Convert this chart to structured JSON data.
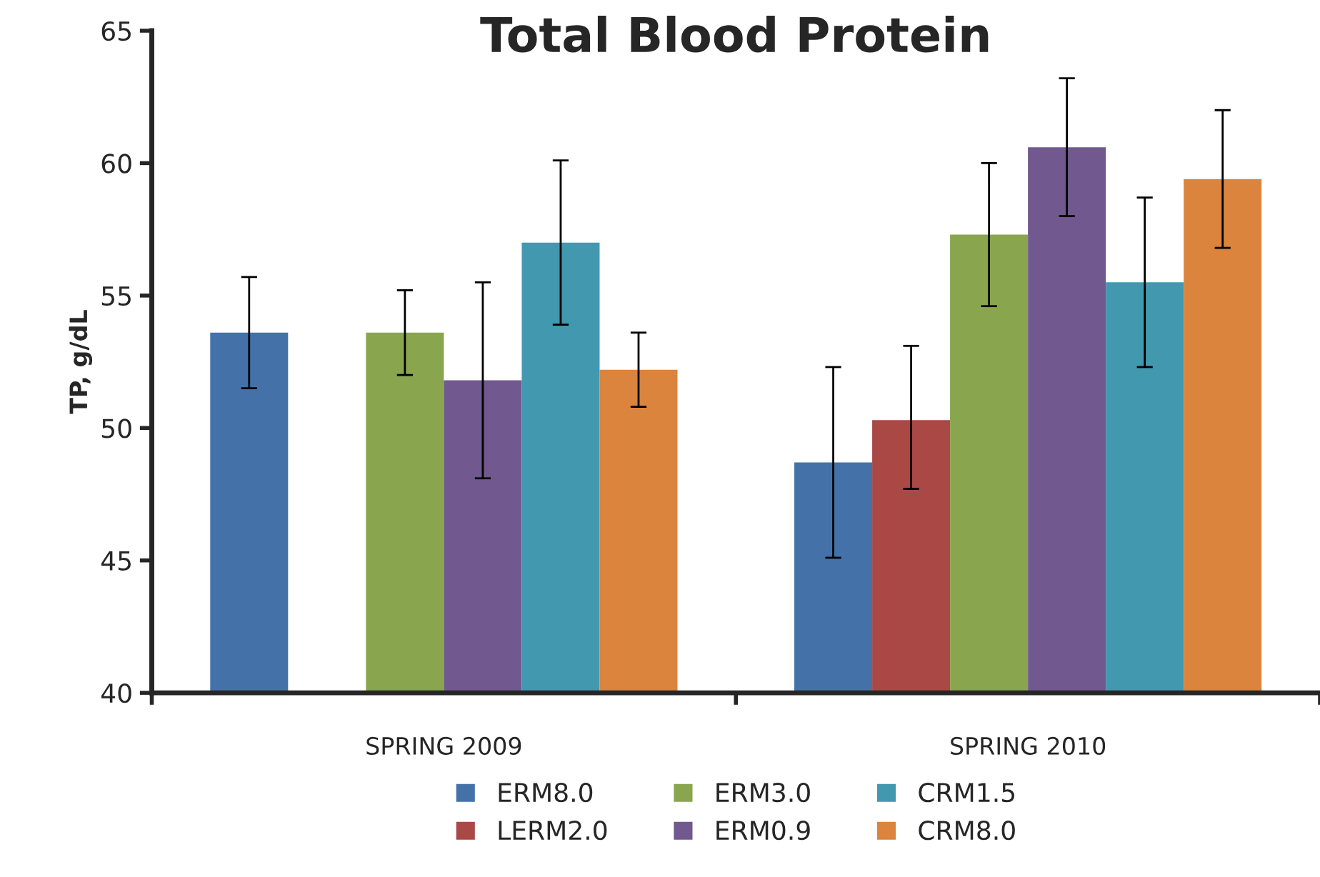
{
  "chart_data": {
    "type": "bar",
    "title": "Total Blood Protein",
    "ylabel": "TP, g/dL",
    "categories": [
      "SPRING 2009",
      "SPRING 2010"
    ],
    "series": [
      {
        "name": "ERM8.0",
        "color": "#4472a8",
        "values": [
          53.6,
          48.7
        ],
        "errors": [
          [
            51.5,
            55.7
          ],
          [
            45.1,
            52.3
          ]
        ]
      },
      {
        "name": "LERM2.0",
        "color": "#aa4846",
        "values": [
          null,
          50.3
        ],
        "errors": [
          null,
          [
            47.7,
            53.1
          ]
        ]
      },
      {
        "name": "ERM3.0",
        "color": "#89a54e",
        "values": [
          53.6,
          57.3
        ],
        "errors": [
          [
            52.0,
            55.2
          ],
          [
            54.6,
            60.0
          ]
        ]
      },
      {
        "name": "ERM0.9",
        "color": "#71588f",
        "values": [
          51.8,
          60.6
        ],
        "errors": [
          [
            48.1,
            55.5
          ],
          [
            58.0,
            63.2
          ]
        ]
      },
      {
        "name": "CRM1.5",
        "color": "#4298af",
        "values": [
          57.0,
          55.5
        ],
        "errors": [
          [
            53.9,
            60.1
          ],
          [
            52.3,
            58.7
          ]
        ]
      },
      {
        "name": "CRM8.0",
        "color": "#db843d",
        "values": [
          52.2,
          59.4
        ],
        "errors": [
          [
            50.8,
            53.6
          ],
          [
            56.8,
            62.0
          ]
        ]
      }
    ],
    "ylim": [
      40,
      65
    ],
    "yticks": [
      40,
      45,
      50,
      55,
      60,
      65
    ],
    "grid": false,
    "legend": "bottom"
  }
}
